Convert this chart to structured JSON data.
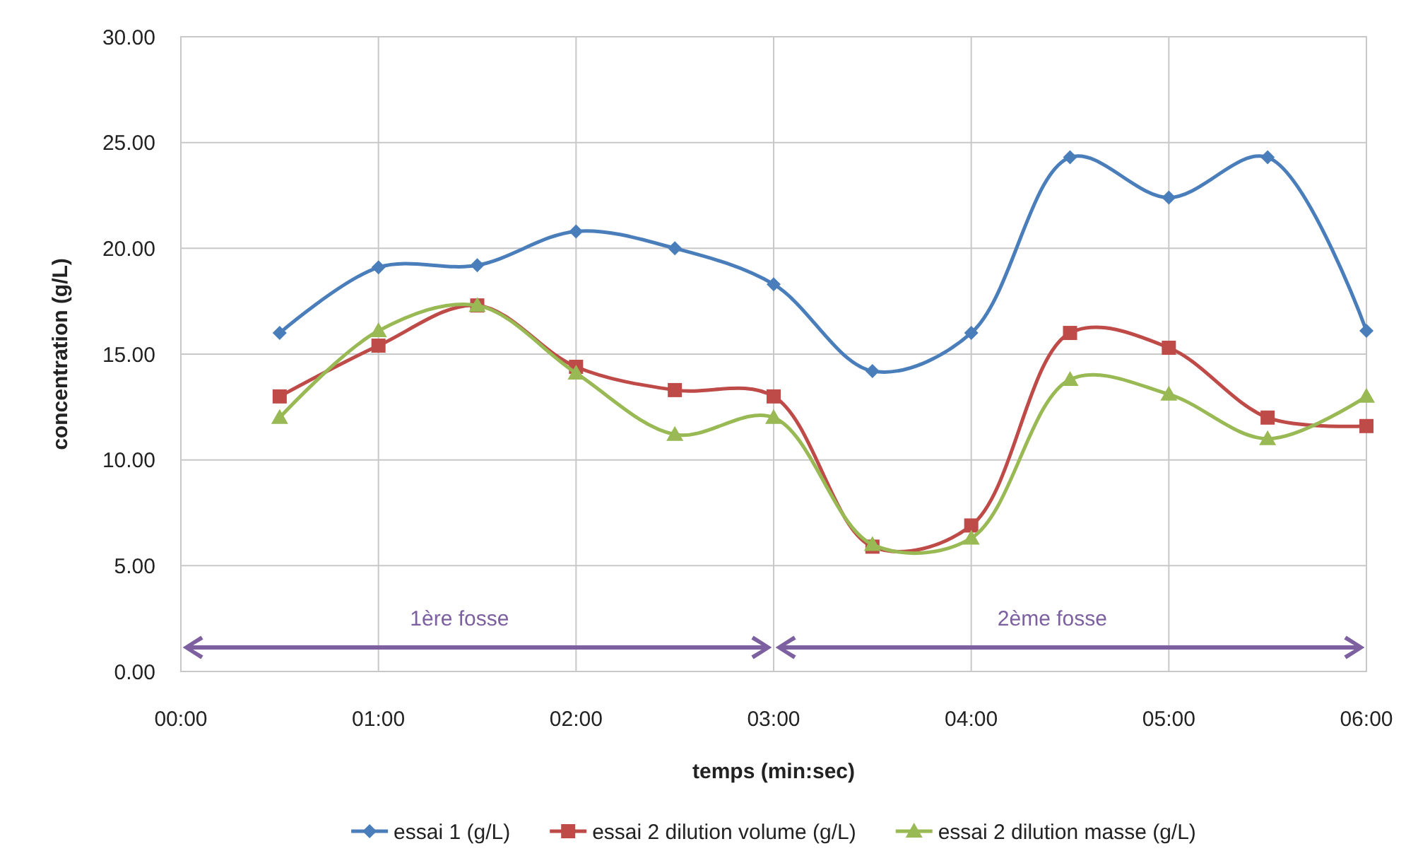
{
  "chart_data": {
    "type": "line",
    "xlabel": "temps (min:sec)",
    "ylabel": "concentration (g/L)",
    "x": [
      0.5,
      1,
      1.5,
      2,
      2.5,
      3,
      3.5,
      4,
      4.5,
      5,
      5.5,
      6
    ],
    "series": [
      {
        "name": "essai 1 (g/L)",
        "color": "#4a7ebb",
        "marker": "diamond",
        "values": [
          16.0,
          19.1,
          19.2,
          20.8,
          20.0,
          18.3,
          14.2,
          16.0,
          24.3,
          22.4,
          24.3,
          16.1
        ]
      },
      {
        "name": "essai 2 dilution volume (g/L)",
        "color": "#be4b48",
        "marker": "square",
        "values": [
          13.0,
          15.4,
          17.3,
          14.4,
          13.3,
          13.0,
          5.9,
          6.9,
          16.0,
          15.3,
          12.0,
          11.6
        ]
      },
      {
        "name": "essai 2 dilution masse (g/L)",
        "color": "#98b954",
        "marker": "triangle",
        "values": [
          12.0,
          16.1,
          17.3,
          14.1,
          11.2,
          12.0,
          6.0,
          6.3,
          13.8,
          13.1,
          11.0,
          13.0
        ]
      }
    ],
    "xlim": [
      0,
      6
    ],
    "xticks": [
      {
        "value": 0,
        "label": "00:00"
      },
      {
        "value": 1,
        "label": "01:00"
      },
      {
        "value": 2,
        "label": "02:00"
      },
      {
        "value": 3,
        "label": "03:00"
      },
      {
        "value": 4,
        "label": "04:00"
      },
      {
        "value": 5,
        "label": "05:00"
      },
      {
        "value": 6,
        "label": "06:00"
      }
    ],
    "ylim": [
      0,
      30
    ],
    "yticks": [
      {
        "value": 0,
        "label": "0.00"
      },
      {
        "value": 5,
        "label": "5.00"
      },
      {
        "value": 10,
        "label": "10.00"
      },
      {
        "value": 15,
        "label": "15.00"
      },
      {
        "value": 20,
        "label": "20.00"
      },
      {
        "value": 25,
        "label": "25.00"
      },
      {
        "value": 30,
        "label": "30.00"
      }
    ],
    "grid": true,
    "legend": "bottom",
    "line_style": "solid",
    "annotations": [
      "1ère fosse",
      "2ème fosse"
    ]
  }
}
